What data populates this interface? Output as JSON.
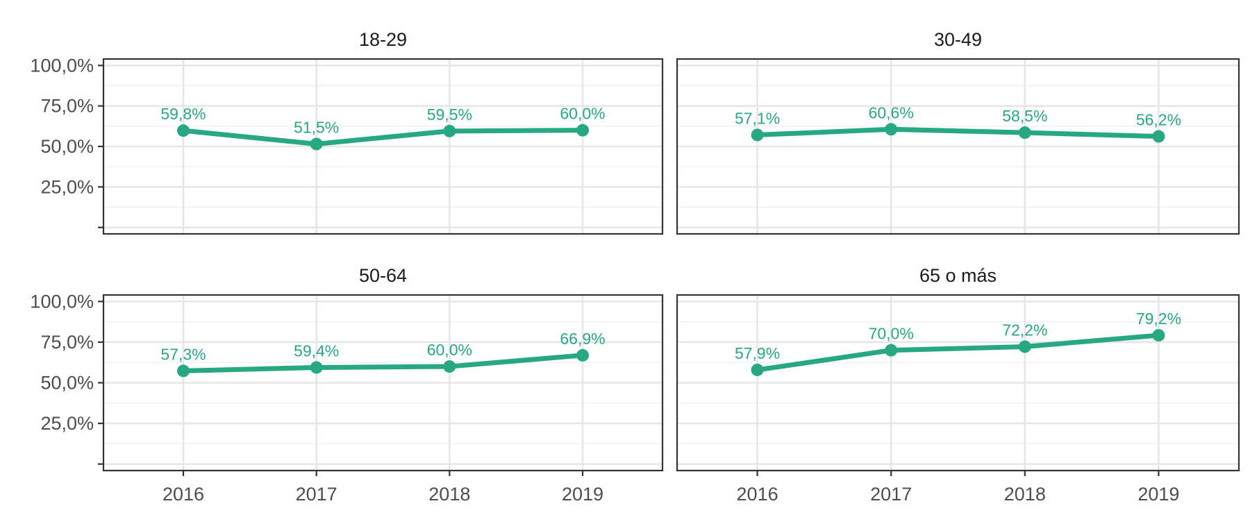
{
  "chart_data": {
    "type": "line",
    "facets": [
      {
        "title": "18-29",
        "values": [
          59.8,
          51.5,
          59.5,
          60.0
        ],
        "labels": [
          "59,8%",
          "51,5%",
          "59,5%",
          "60,0%"
        ]
      },
      {
        "title": "30-49",
        "values": [
          57.1,
          60.6,
          58.5,
          56.2
        ],
        "labels": [
          "57,1%",
          "60,6%",
          "58,5%",
          "56,2%"
        ]
      },
      {
        "title": "50-64",
        "values": [
          57.3,
          59.4,
          60.0,
          66.9
        ],
        "labels": [
          "57,3%",
          "59,4%",
          "60,0%",
          "66,9%"
        ]
      },
      {
        "title": "65 o más",
        "values": [
          57.9,
          70.0,
          72.2,
          79.2
        ],
        "labels": [
          "57,9%",
          "70,0%",
          "72,2%",
          "79,2%"
        ]
      }
    ],
    "x": [
      "2016",
      "2017",
      "2018",
      "2019"
    ],
    "y_ticks": [
      0,
      25,
      50,
      75,
      100
    ],
    "y_tick_labels": [
      "",
      "25,0%",
      "50,0%",
      "75,0%",
      "100,0%"
    ],
    "ylim": [
      -4,
      104
    ],
    "xlabel": "",
    "ylabel": "",
    "grid": true,
    "legend": "none",
    "colors": {
      "series": "#27a882",
      "label": "#27a882"
    }
  }
}
